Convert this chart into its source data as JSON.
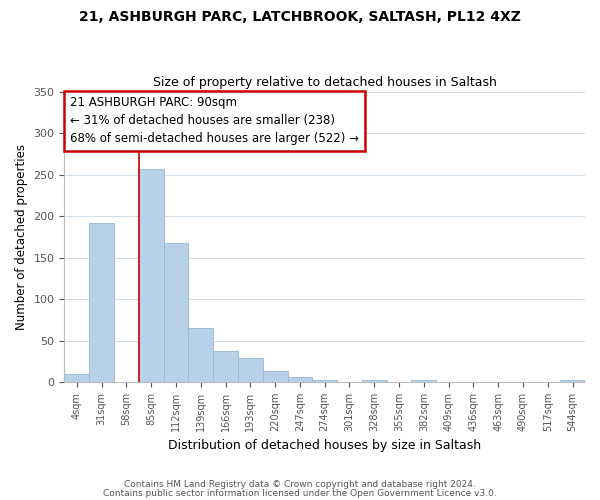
{
  "title1": "21, ASHBURGH PARC, LATCHBROOK, SALTASH, PL12 4XZ",
  "title2": "Size of property relative to detached houses in Saltash",
  "bar_labels": [
    "4sqm",
    "31sqm",
    "58sqm",
    "85sqm",
    "112sqm",
    "139sqm",
    "166sqm",
    "193sqm",
    "220sqm",
    "247sqm",
    "274sqm",
    "301sqm",
    "328sqm",
    "355sqm",
    "382sqm",
    "409sqm",
    "436sqm",
    "463sqm",
    "490sqm",
    "517sqm",
    "544sqm"
  ],
  "bar_values": [
    10,
    192,
    0,
    257,
    168,
    65,
    37,
    29,
    13,
    6,
    3,
    0,
    3,
    0,
    2,
    0,
    0,
    0,
    0,
    0,
    2
  ],
  "bar_color": "#b8d0e8",
  "bar_edge_color": "#9ab8d8",
  "vline_x": 2.5,
  "ylim": [
    0,
    350
  ],
  "yticks": [
    0,
    50,
    100,
    150,
    200,
    250,
    300,
    350
  ],
  "ylabel": "Number of detached properties",
  "xlabel": "Distribution of detached houses by size in Saltash",
  "annotation_title": "21 ASHBURGH PARC: 90sqm",
  "annotation_line1": "← 31% of detached houses are smaller (238)",
  "annotation_line2": "68% of semi-detached houses are larger (522) →",
  "annotation_box_color": "#ffffff",
  "annotation_box_edge": "#cc0000",
  "vline_color": "#cc0000",
  "footnote1": "Contains HM Land Registry data © Crown copyright and database right 2024.",
  "footnote2": "Contains public sector information licensed under the Open Government Licence v3.0.",
  "background_color": "#ffffff",
  "grid_color": "#c8d8e8"
}
